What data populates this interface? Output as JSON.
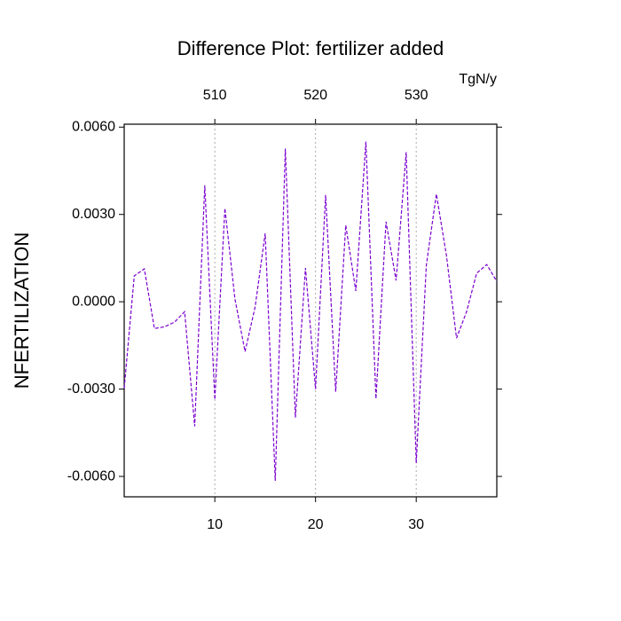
{
  "chart_data": {
    "type": "line",
    "title": "Difference Plot: fertilizer added",
    "ylabel": "NFERTILIZATION",
    "x2label": "TgN/y",
    "x": [
      1,
      2,
      3,
      4,
      5,
      6,
      7,
      8,
      9,
      10,
      11,
      12,
      13,
      14,
      15,
      16,
      17,
      18,
      19,
      20,
      21,
      22,
      23,
      24,
      25,
      26,
      27,
      28,
      29,
      30,
      31,
      32,
      33,
      34,
      35,
      36,
      37,
      38
    ],
    "series": [
      {
        "color": "#7a00d0",
        "values": [
          -0.00297,
          0.00089,
          0.00113,
          -0.00092,
          -0.00086,
          -0.0007,
          -0.00034,
          -0.00428,
          0.004,
          -0.00336,
          0.00321,
          9e-05,
          -0.00171,
          -0.00018,
          0.00235,
          -0.00615,
          0.00526,
          -0.00398,
          0.00116,
          -0.003,
          0.00367,
          -0.00309,
          0.00263,
          0.00037,
          0.0055,
          -0.00333,
          0.00275,
          0.00073,
          0.00514,
          -0.00554,
          0.00125,
          0.0037,
          0.00159,
          -0.00125,
          -0.00034,
          0.00098,
          0.00128,
          0.0007
        ]
      }
    ],
    "xlim": [
      1,
      38
    ],
    "xticks": [
      10,
      20,
      30
    ],
    "xtick_color": "#ff0000",
    "x2lim": [
      501,
      538
    ],
    "x2ticks": [
      510,
      520,
      530
    ],
    "x2tick_color": "#0000ff",
    "ylim": [
      -0.0067,
      0.0061
    ],
    "yticks": [
      {
        "value": -0.006,
        "label": "-0.0060"
      },
      {
        "value": -0.003,
        "label": "-0.0030"
      },
      {
        "value": 0,
        "label": "0.0000"
      },
      {
        "value": 0.003,
        "label": "0.0030"
      },
      {
        "value": 0.006,
        "label": "0.0060"
      }
    ],
    "grid": true,
    "dashed": true
  }
}
